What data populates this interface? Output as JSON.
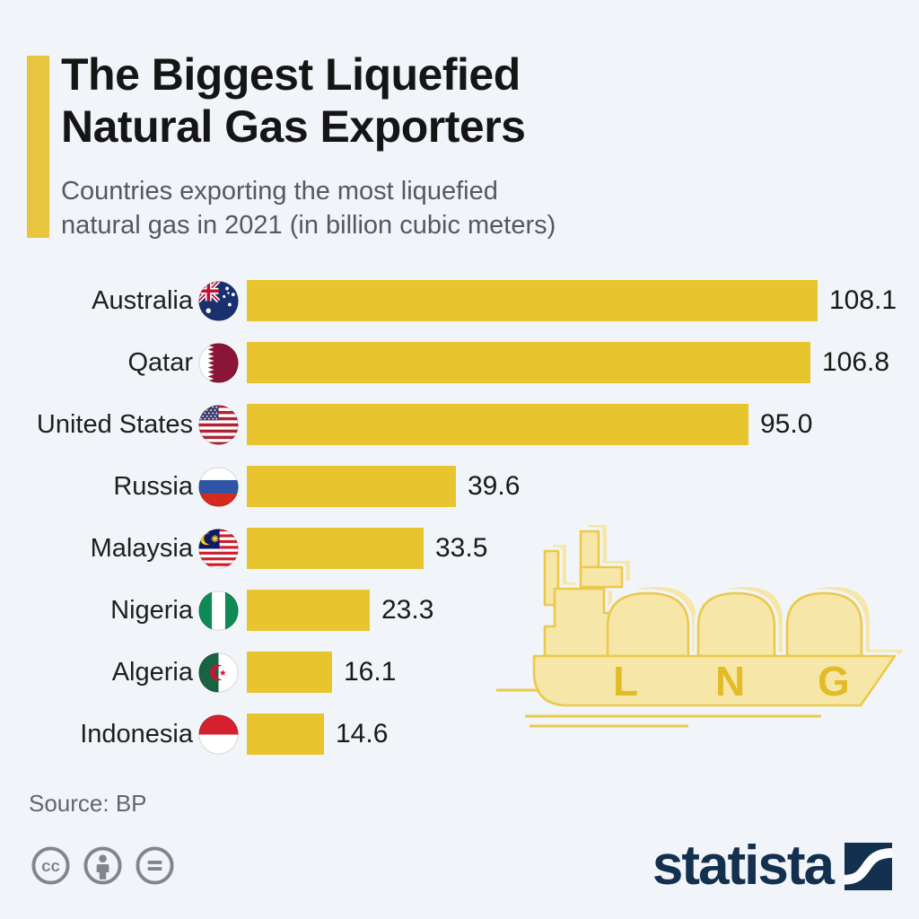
{
  "header": {
    "title_line1": "The Biggest Liquefied",
    "title_line2": "Natural Gas Exporters",
    "subtitle_line1": "Countries exporting the most liquefied",
    "subtitle_line2": "natural gas in 2021 (in billion cubic meters)"
  },
  "chart_data": {
    "type": "bar",
    "orientation": "horizontal",
    "title": "The Biggest Liquefied Natural Gas Exporters",
    "subtitle": "Countries exporting the most liquefied natural gas in 2021 (in billion cubic meters)",
    "unit": "billion cubic meters",
    "year": "2021",
    "categories": [
      "Australia",
      "Qatar",
      "United States",
      "Russia",
      "Malaysia",
      "Nigeria",
      "Algeria",
      "Indonesia"
    ],
    "values": [
      108.1,
      106.8,
      95.0,
      39.6,
      33.5,
      23.3,
      16.1,
      14.6
    ],
    "value_labels": [
      "108.1",
      "106.8",
      "95.0",
      "39.6",
      "33.5",
      "23.3",
      "16.1",
      "14.6"
    ],
    "flag_icons": [
      "flag-australia-icon",
      "flag-qatar-icon",
      "flag-united-states-icon",
      "flag-russia-icon",
      "flag-malaysia-icon",
      "flag-nigeria-icon",
      "flag-algeria-icon",
      "flag-indonesia-icon"
    ],
    "bar_color": "#E8C52F",
    "xlim": [
      0,
      112
    ],
    "grid": false,
    "legend": false
  },
  "illustration": {
    "name": "lng-tanker-ship",
    "letters": [
      "L",
      "N",
      "G"
    ]
  },
  "footer": {
    "source": "Source: BP",
    "license_icons": [
      "cc-icon",
      "cc-by-person-icon",
      "cc-nd-equals-icon"
    ],
    "brand_wordmark": "statista"
  },
  "colors": {
    "background": "#F1F5F9",
    "bar": "#E8C52F",
    "accent": "#E9C53F",
    "ship_fill": "#F6E6A8",
    "ship_stroke": "#EAC94B",
    "title": "#151515",
    "subtitle": "#55585C",
    "source_gray": "#63666A",
    "license_gray": "#82868A",
    "brand_navy": "#14304F"
  }
}
